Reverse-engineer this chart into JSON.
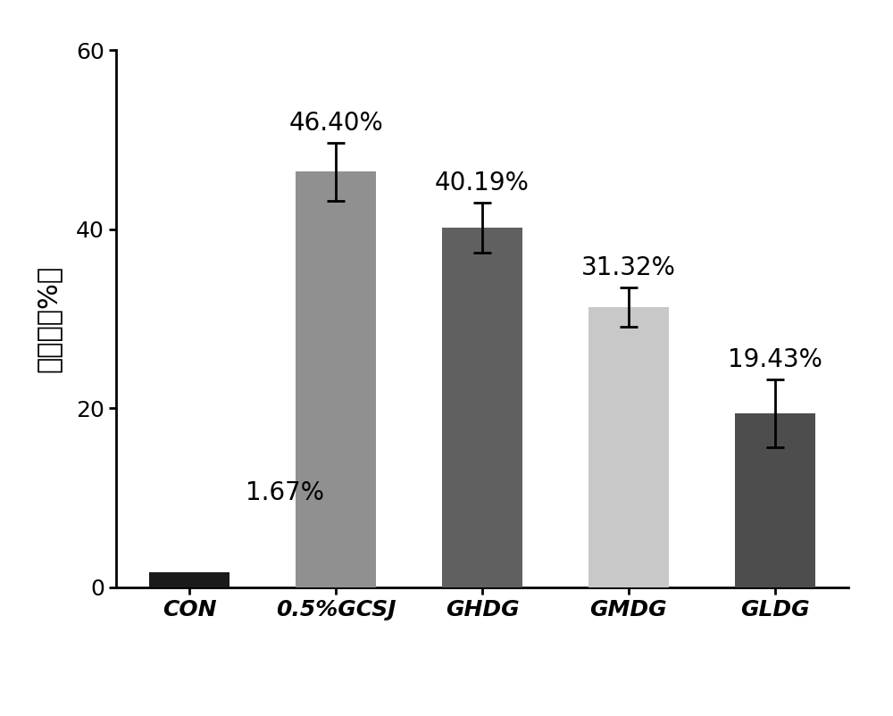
{
  "categories": [
    "CON",
    "0.5%GCSJ",
    "GHDG",
    "GMDG",
    "GLDG"
  ],
  "values": [
    1.67,
    46.4,
    40.19,
    31.32,
    19.43
  ],
  "errors": [
    0.0,
    3.2,
    2.8,
    2.2,
    3.8
  ],
  "bar_colors": [
    "#1a1a1a",
    "#909090",
    "#606060",
    "#c8c8c8",
    "#4d4d4d"
  ],
  "labels": [
    "1.67%",
    "46.40%",
    "40.19%",
    "31.32%",
    "19.43%"
  ],
  "ylabel": "抑制率（%）",
  "ylim": [
    0,
    60
  ],
  "yticks": [
    0,
    20,
    40,
    60
  ],
  "bar_width": 0.55,
  "label_fontsize": 20,
  "tick_fontsize": 18,
  "ylabel_fontsize": 22,
  "background_color": "#ffffff",
  "error_capsize": 7,
  "error_linewidth": 2.0,
  "figsize": [
    10.0,
    8.02
  ]
}
